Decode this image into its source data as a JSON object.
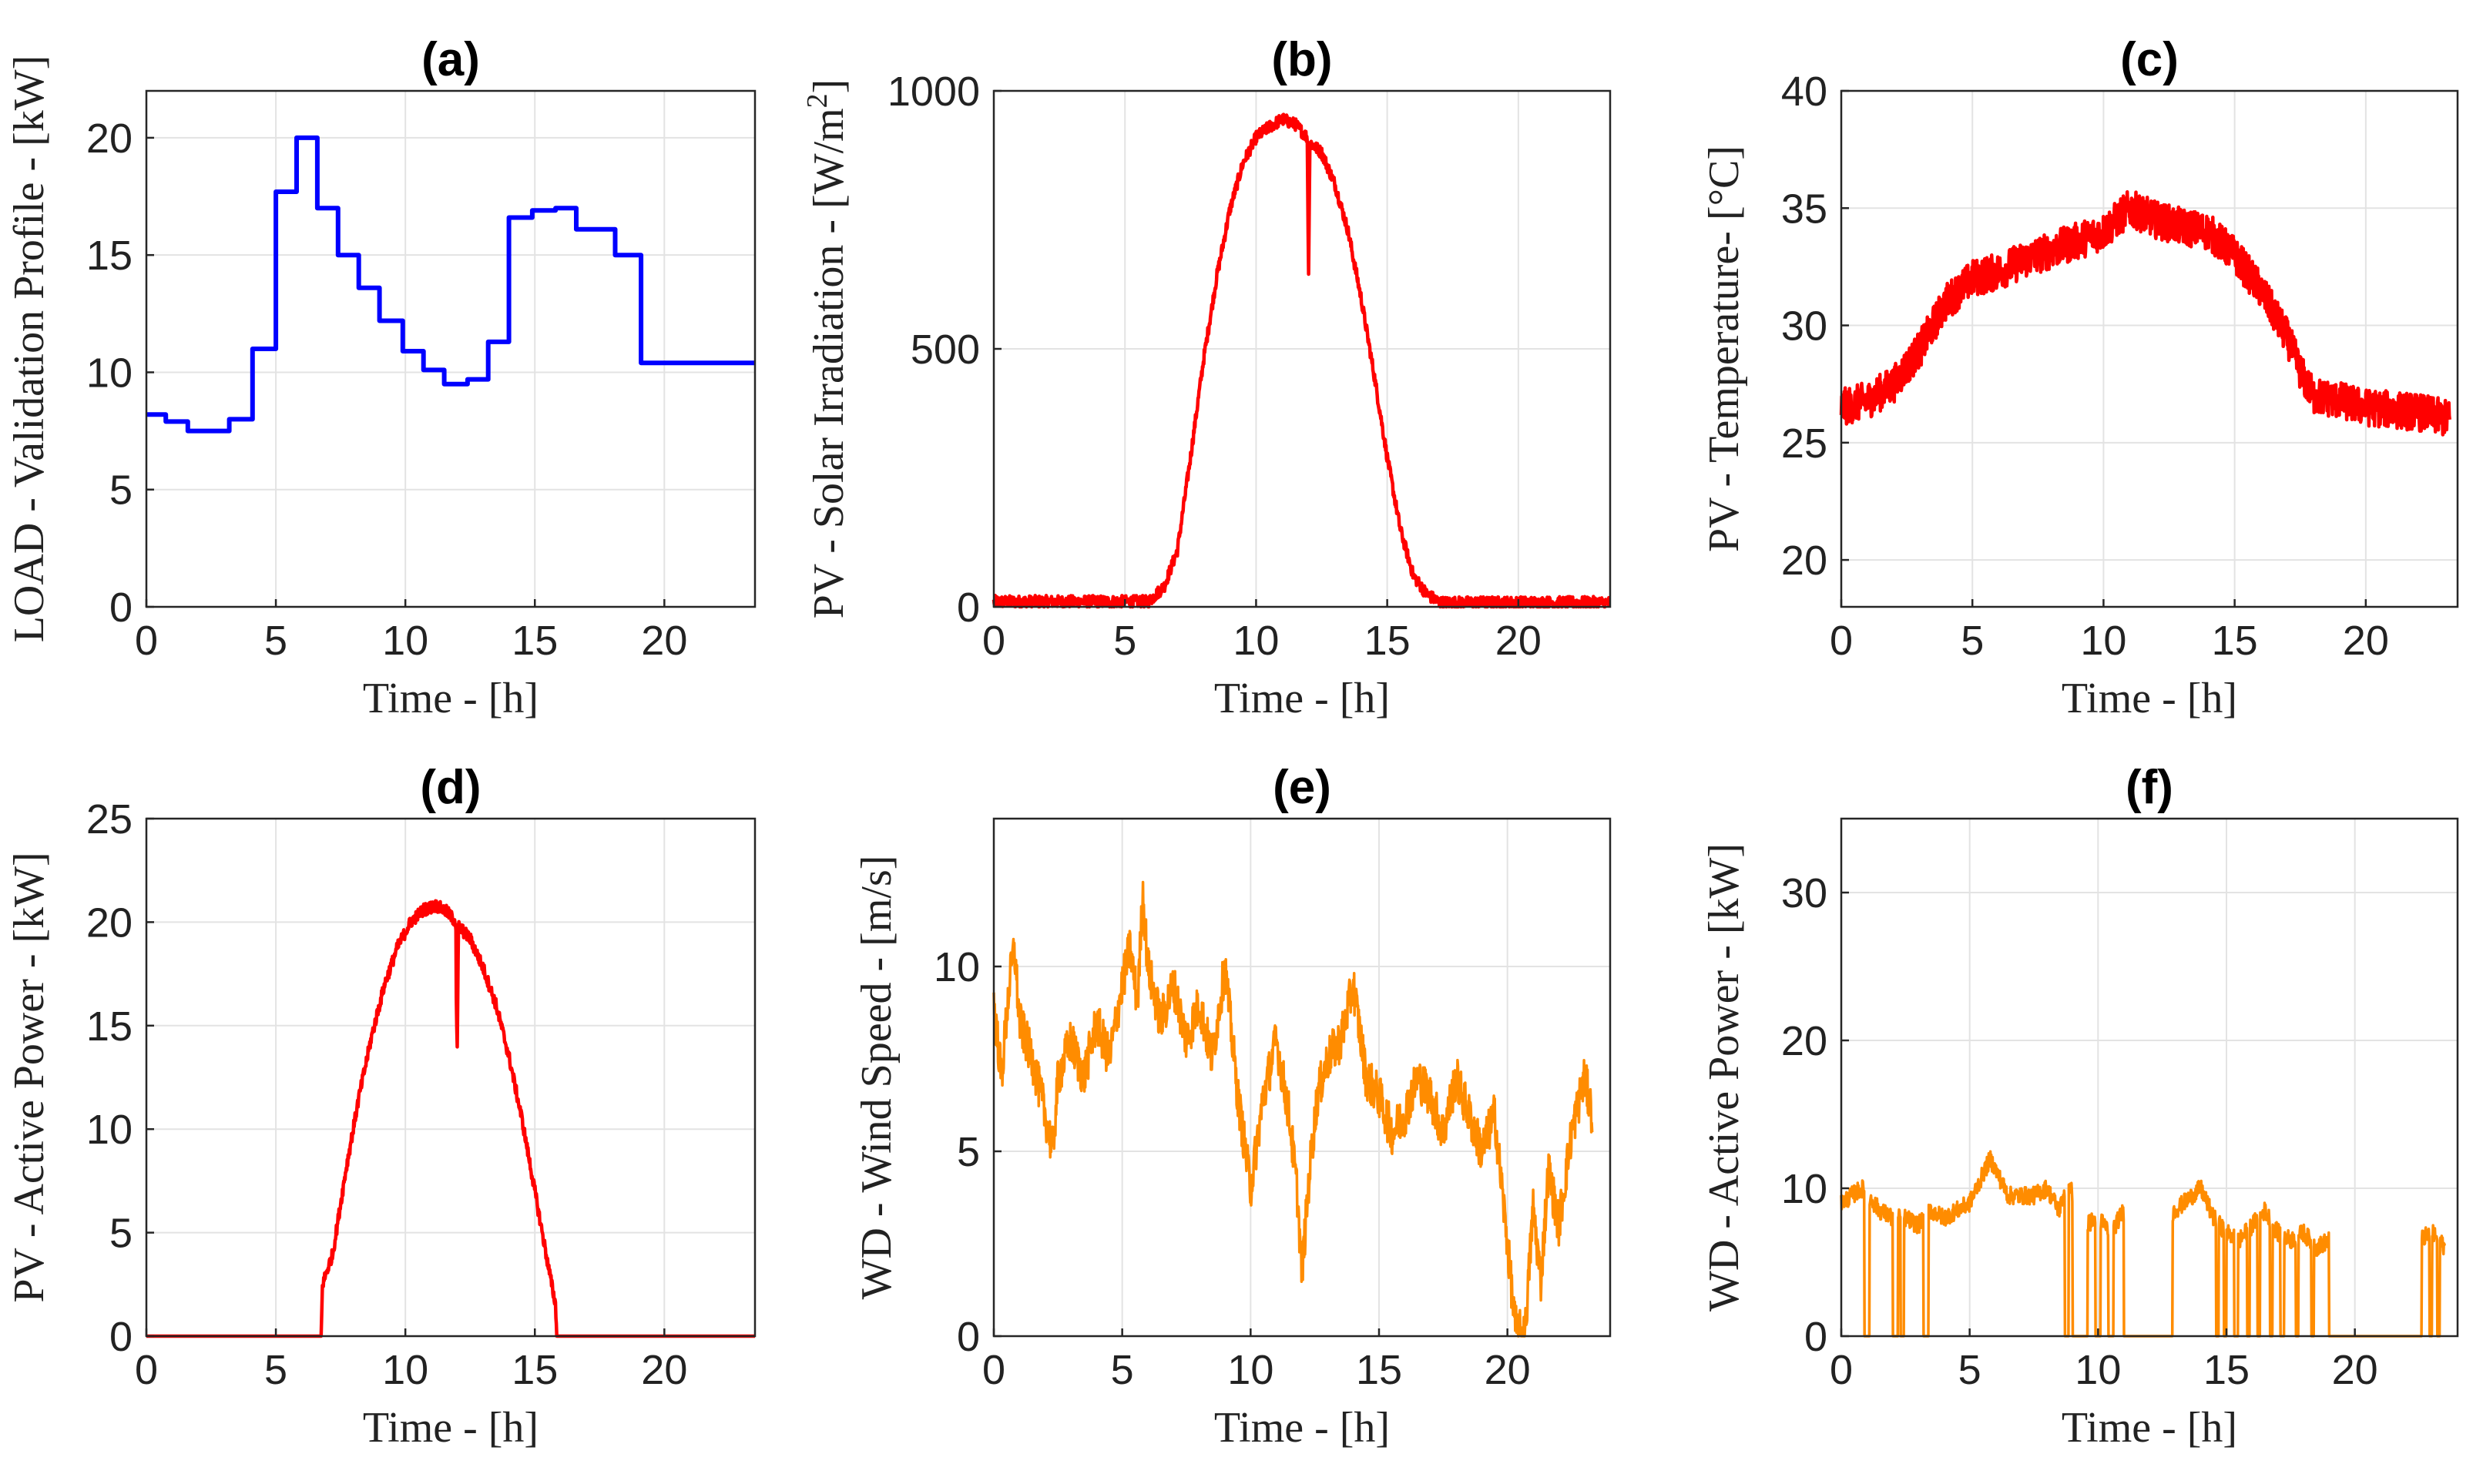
{
  "figure": {
    "panels": [
      {
        "title": "(a)",
        "xlabel": "Time - [h]",
        "ylabel": "LOAD - Validation Profile - [kW]"
      },
      {
        "title": "(b)",
        "xlabel": "Time - [h]",
        "ylabel": "PV - Solar Irradiation - [W/m",
        "ylabel_sup": "2",
        "ylabel_end": "]"
      },
      {
        "title": "(c)",
        "xlabel": "Time - [h]",
        "ylabel": "PV - Temperature- [°C]"
      },
      {
        "title": "(d)",
        "xlabel": "Time - [h]",
        "ylabel": "PV - Active Power - [kW]"
      },
      {
        "title": "(e)",
        "xlabel": "Time - [h]",
        "ylabel": "WD - Wind Speed - [m/s]"
      },
      {
        "title": "(f)",
        "xlabel": "Time - [h]",
        "ylabel": "WD - Active Power - [kW]"
      }
    ]
  },
  "chart_data": [
    {
      "type": "line",
      "title": "(a)",
      "xlabel": "Time - [h]",
      "ylabel": "LOAD - Validation Profile - [kW]",
      "xlim": [
        0,
        23.5
      ],
      "ylim": [
        0,
        22
      ],
      "xticks": [
        0,
        5,
        10,
        15,
        20
      ],
      "yticks": [
        0,
        5,
        10,
        15,
        20
      ],
      "color": "#0000ff",
      "style": "step",
      "x": [
        0,
        0.75,
        1.6,
        3.2,
        4.1,
        5.0,
        5.8,
        6.6,
        7.4,
        8.2,
        9.0,
        9.9,
        10.7,
        11.5,
        12.4,
        13.2,
        14.0,
        14.9,
        15.8,
        16.6,
        18.1,
        19.1,
        23.5
      ],
      "values": [
        8.2,
        7.9,
        7.5,
        8.0,
        11.0,
        17.7,
        20.0,
        17.0,
        15.0,
        13.6,
        12.2,
        10.9,
        10.1,
        9.5,
        9.7,
        11.3,
        16.6,
        16.9,
        17.0,
        16.1,
        15.0,
        10.4,
        10.4
      ]
    },
    {
      "type": "line",
      "title": "(b)",
      "xlabel": "Time - [h]",
      "ylabel": "PV - Solar Irradiation - [W/m2]",
      "xlim": [
        0,
        23.5
      ],
      "ylim": [
        0,
        1000
      ],
      "xticks": [
        0,
        5,
        10,
        15,
        20
      ],
      "yticks": [
        0,
        500,
        1000
      ],
      "color": "#ff0000",
      "noise": 12,
      "x": [
        0,
        5.9,
        6.5,
        7.0,
        7.5,
        8.0,
        8.5,
        9.0,
        9.5,
        10.0,
        10.5,
        11.0,
        11.5,
        11.95,
        11.97,
        12.0,
        12.05,
        12.5,
        13.0,
        13.5,
        14.0,
        14.5,
        15.0,
        15.5,
        16.0,
        16.5,
        17.0,
        23.5
      ],
      "values": [
        10,
        10,
        40,
        110,
        290,
        480,
        640,
        770,
        860,
        910,
        930,
        945,
        935,
        910,
        820,
        630,
        900,
        880,
        820,
        730,
        600,
        450,
        290,
        150,
        60,
        25,
        8,
        8
      ]
    },
    {
      "type": "line",
      "title": "(c)",
      "xlabel": "Time - [h]",
      "ylabel": "PV - Temperature- [°C]",
      "xlim": [
        0,
        23.5
      ],
      "ylim": [
        18,
        40
      ],
      "xticks": [
        0,
        5,
        10,
        15,
        20
      ],
      "yticks": [
        20,
        25,
        30,
        35,
        40
      ],
      "color": "#ff0000",
      "noise": 0.8,
      "x": [
        0,
        1.0,
        2.0,
        3.0,
        4.0,
        5.0,
        6.0,
        7.0,
        8.0,
        9.0,
        10.0,
        11.0,
        12.0,
        13.0,
        14.0,
        15.0,
        16.0,
        17.0,
        17.6,
        18.0,
        19.0,
        20.0,
        22.0,
        23.2
      ],
      "values": [
        26.5,
        26.8,
        27.5,
        29.0,
        31.0,
        32.0,
        32.3,
        32.8,
        33.2,
        33.6,
        34.0,
        35.0,
        34.5,
        34.2,
        34.0,
        33.0,
        31.5,
        29.5,
        27.8,
        27.0,
        26.8,
        26.5,
        26.3,
        26.0
      ]
    },
    {
      "type": "line",
      "title": "(d)",
      "xlabel": "Time - [h]",
      "ylabel": "PV - Active Power - [kW]",
      "xlim": [
        0,
        23.5
      ],
      "ylim": [
        0,
        25
      ],
      "xticks": [
        0,
        5,
        10,
        15,
        20
      ],
      "yticks": [
        0,
        5,
        10,
        15,
        20,
        25
      ],
      "color": "#ff0000",
      "noise": 0.3,
      "x": [
        0,
        6.75,
        6.8,
        7.2,
        7.7,
        8.2,
        8.7,
        9.2,
        9.7,
        10.2,
        10.7,
        11.2,
        11.6,
        11.95,
        11.97,
        12.0,
        12.05,
        12.5,
        13.0,
        13.5,
        14.0,
        14.5,
        15.0,
        15.5,
        15.8,
        15.85,
        23.5
      ],
      "values": [
        0,
        0,
        2.5,
        4.0,
        8.0,
        11.5,
        14.5,
        17.0,
        18.8,
        20.0,
        20.6,
        20.8,
        20.5,
        20.0,
        16.0,
        13.5,
        19.8,
        19.2,
        17.8,
        16.0,
        13.5,
        10.5,
        7.0,
        3.5,
        1.5,
        0,
        0
      ]
    },
    {
      "type": "line",
      "title": "(e)",
      "xlabel": "Time - [h]",
      "ylabel": "WD - Wind Speed - [m/s]",
      "xlim": [
        0,
        24
      ],
      "ylim": [
        0,
        14
      ],
      "xticks": [
        0,
        5,
        10,
        15,
        20
      ],
      "yticks": [
        0,
        5,
        10
      ],
      "color": "#ff8c00",
      "noise": 0.6,
      "x": [
        0,
        0.3,
        0.6,
        0.8,
        1.0,
        1.5,
        2.0,
        2.3,
        2.5,
        3.0,
        3.5,
        4.0,
        4.5,
        5.0,
        5.3,
        5.6,
        5.8,
        6.0,
        6.5,
        7.0,
        7.5,
        8.0,
        8.5,
        9.0,
        9.5,
        9.8,
        10.0,
        10.5,
        11.0,
        11.5,
        11.8,
        12.0,
        12.3,
        12.6,
        13.0,
        13.5,
        14.0,
        14.5,
        15.0,
        15.5,
        16.0,
        16.5,
        17.0,
        17.5,
        18.0,
        18.5,
        19.0,
        19.5,
        20.0,
        20.3,
        20.5,
        20.7,
        21.0,
        21.3,
        21.6,
        22.0,
        22.5,
        23.0,
        23.3
      ],
      "values": [
        9.0,
        7.0,
        9.5,
        10.5,
        8.5,
        7.5,
        6.0,
        5.0,
        7.0,
        8.0,
        7.0,
        8.5,
        7.5,
        9.5,
        10.5,
        9.0,
        12.0,
        10.0,
        8.5,
        9.5,
        8.0,
        9.0,
        7.5,
        10.0,
        6.5,
        5.0,
        4.0,
        6.5,
        8.0,
        6.0,
        4.0,
        1.7,
        4.5,
        6.5,
        7.5,
        8.0,
        9.5,
        7.0,
        6.5,
        5.5,
        6.0,
        7.0,
        6.5,
        5.5,
        7.0,
        6.0,
        5.0,
        6.0,
        2.5,
        0.3,
        0.1,
        0.2,
        3.5,
        1.5,
        4.5,
        3.0,
        5.5,
        7.0,
        6.0
      ]
    },
    {
      "type": "line",
      "title": "(f)",
      "xlabel": "Time - [h]",
      "ylabel": "WD - Active Power - [kW]",
      "xlim": [
        0,
        24
      ],
      "ylim": [
        0,
        35
      ],
      "xticks": [
        0,
        5,
        10,
        15,
        20
      ],
      "yticks": [
        0,
        10,
        20,
        30
      ],
      "color": "#ff8c00",
      "noise": 0.6,
      "x": [
        0,
        0.8,
        1.5,
        2.0,
        2.5,
        3.0,
        3.5,
        4.0,
        5.0,
        5.8,
        6.5,
        7.5,
        8.0,
        8.5,
        8.8,
        9.5,
        10.0,
        10.5,
        11.0,
        12.0,
        12.5,
        13.0,
        14.0,
        14.5,
        15.0,
        15.5,
        16.0,
        16.5,
        17.0,
        17.5,
        18.0,
        18.5,
        19.0,
        20.0,
        21.0,
        22.0,
        22.5,
        23.0,
        23.5
      ],
      "values": [
        9.0,
        10.0,
        8.5,
        8.0,
        8.0,
        7.5,
        8.5,
        8.0,
        9.0,
        12.0,
        9.5,
        9.5,
        10.0,
        8.5,
        10.5,
        7.5,
        8.0,
        7.0,
        8.5,
        7.0,
        7.5,
        8.5,
        10.0,
        8.0,
        7.0,
        6.5,
        7.5,
        8.5,
        7.0,
        6.5,
        7.0,
        6.0,
        6.5,
        6.0,
        6.0,
        6.0,
        6.5,
        7.0,
        6.0
      ],
      "zero_intervals": [
        [
          0.9,
          1.1
        ],
        [
          2.0,
          2.2
        ],
        [
          2.3,
          2.45
        ],
        [
          3.2,
          3.4
        ],
        [
          8.7,
          8.85
        ],
        [
          9.0,
          9.6
        ],
        [
          9.9,
          10.1
        ],
        [
          10.4,
          10.6
        ],
        [
          11.0,
          12.9
        ],
        [
          14.6,
          14.7
        ],
        [
          14.9,
          15.0
        ],
        [
          15.3,
          15.45
        ],
        [
          15.8,
          15.9
        ],
        [
          16.2,
          16.3
        ],
        [
          16.7,
          16.8
        ],
        [
          17.1,
          17.25
        ],
        [
          17.7,
          17.8
        ],
        [
          18.3,
          18.4
        ],
        [
          19.0,
          22.6
        ],
        [
          22.9,
          23.0
        ],
        [
          23.2,
          23.3
        ]
      ]
    }
  ]
}
